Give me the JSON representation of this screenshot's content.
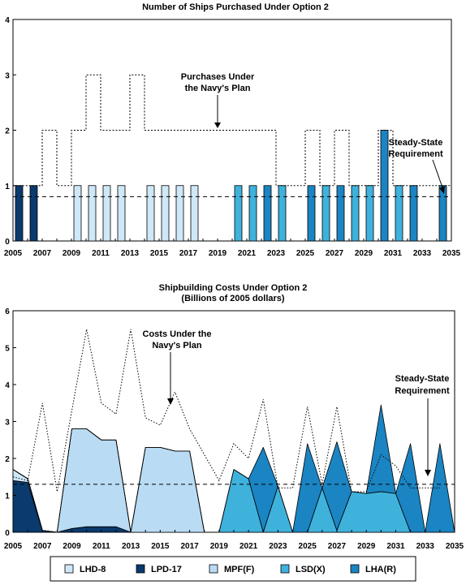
{
  "colors": {
    "LHD-8": "#cfe8f8",
    "LPD-17": "#0a3a6e",
    "MPF(F)": "#b9dcf4",
    "LSD(X)": "#3fb2dc",
    "LHA(R)": "#1b84c2",
    "outline": "#000000"
  },
  "chart_data": [
    {
      "type": "bar",
      "title": "Number of Ships Purchased Under Option 2",
      "xlim": [
        2005,
        2035
      ],
      "ylim": [
        0,
        4
      ],
      "yticks": [
        "0",
        "1",
        "2",
        "3",
        "4"
      ],
      "xticks": [
        "2005",
        "2007",
        "2009",
        "2011",
        "2013",
        "2015",
        "2017",
        "2019",
        "2021",
        "2023",
        "2025",
        "2027",
        "2029",
        "2031",
        "2033",
        "2035"
      ],
      "bars": [
        {
          "year": 2005,
          "ship": "LPD-17",
          "count": 1
        },
        {
          "year": 2006,
          "ship": "LPD-17",
          "count": 1
        },
        {
          "year": 2009,
          "ship": "LHD-8",
          "count": 1
        },
        {
          "year": 2010,
          "ship": "LHD-8",
          "count": 1
        },
        {
          "year": 2011,
          "ship": "LHD-8",
          "count": 1
        },
        {
          "year": 2012,
          "ship": "LHD-8",
          "count": 1
        },
        {
          "year": 2014,
          "ship": "LHD-8",
          "count": 1
        },
        {
          "year": 2015,
          "ship": "LHD-8",
          "count": 1
        },
        {
          "year": 2016,
          "ship": "LHD-8",
          "count": 1
        },
        {
          "year": 2017,
          "ship": "LHD-8",
          "count": 1
        },
        {
          "year": 2020,
          "ship": "LSD(X)",
          "count": 1
        },
        {
          "year": 2021,
          "ship": "LSD(X)",
          "count": 1
        },
        {
          "year": 2022,
          "ship": "LHA(R)",
          "count": 1
        },
        {
          "year": 2023,
          "ship": "LSD(X)",
          "count": 1
        },
        {
          "year": 2025,
          "ship": "LHA(R)",
          "count": 1
        },
        {
          "year": 2026,
          "ship": "LSD(X)",
          "count": 1
        },
        {
          "year": 2027,
          "ship": "LHA(R)",
          "count": 1
        },
        {
          "year": 2028,
          "ship": "LSD(X)",
          "count": 1
        },
        {
          "year": 2029,
          "ship": "LSD(X)",
          "count": 1
        },
        {
          "year": 2030,
          "ship": "LHA(R)",
          "count": 2
        },
        {
          "year": 2031,
          "ship": "LSD(X)",
          "count": 1
        },
        {
          "year": 2032,
          "ship": "LHA(R)",
          "count": 1
        },
        {
          "year": 2034,
          "ship": "LHA(R)",
          "count": 1
        }
      ],
      "navy_plan": {
        "years": [
          2005,
          2006,
          2007,
          2008,
          2009,
          2010,
          2011,
          2012,
          2013,
          2014,
          2015,
          2016,
          2017,
          2018,
          2019,
          2020,
          2021,
          2022,
          2023,
          2024,
          2025,
          2026,
          2027,
          2028,
          2029,
          2030,
          2031,
          2032,
          2033,
          2034
        ],
        "values": [
          1,
          1,
          2,
          1,
          2,
          3,
          2,
          2,
          3,
          2,
          2,
          2,
          2,
          2,
          2,
          2,
          2,
          2,
          1,
          1,
          2,
          1,
          2,
          1,
          1,
          2,
          1,
          1,
          1,
          1
        ]
      },
      "steady_state": 0.8,
      "annotations": {
        "plan_label": [
          "Purchases Under",
          "the Navy's Plan"
        ],
        "steady_label": [
          "Steady-State",
          "Requirement"
        ]
      }
    },
    {
      "type": "area",
      "title": [
        "Shipbuilding Costs Under Option 2",
        "(Billions of 2005 dollars)"
      ],
      "xlim": [
        2005,
        2035
      ],
      "ylim": [
        0,
        6
      ],
      "yticks": [
        "0",
        "1",
        "2",
        "3",
        "4",
        "5",
        "6"
      ],
      "xticks": [
        "2005",
        "2007",
        "2009",
        "2011",
        "2013",
        "2015",
        "2017",
        "2019",
        "2021",
        "2023",
        "2025",
        "2027",
        "2029",
        "2031",
        "2033",
        "2035"
      ],
      "x": [
        2005,
        2006,
        2007,
        2008,
        2009,
        2010,
        2011,
        2012,
        2013,
        2014,
        2015,
        2016,
        2017,
        2018,
        2019,
        2020,
        2021,
        2022,
        2023,
        2024,
        2025,
        2026,
        2027,
        2028,
        2029,
        2030,
        2031,
        2032,
        2033,
        2034,
        2035
      ],
      "series": [
        {
          "name": "LPD-17",
          "values": [
            1.4,
            1.35,
            0.05,
            0,
            0.1,
            0.15,
            0.15,
            0.15,
            0,
            0,
            0,
            0,
            0,
            0,
            0,
            0,
            0,
            0,
            0,
            0,
            0,
            0,
            0,
            0,
            0,
            0,
            0,
            0,
            0,
            0,
            0
          ]
        },
        {
          "name": "LHD-8",
          "values": [
            0.3,
            0.1,
            0,
            0,
            0,
            0,
            0,
            0,
            0,
            0,
            0,
            0,
            0,
            0,
            0,
            0,
            0,
            0,
            0,
            0,
            0,
            0,
            0,
            0,
            0,
            0,
            0,
            0,
            0,
            0,
            0
          ]
        },
        {
          "name": "MPF(F)",
          "values": [
            0,
            0,
            0,
            0,
            2.7,
            2.65,
            2.35,
            2.35,
            0,
            2.3,
            2.3,
            2.2,
            2.2,
            0,
            0,
            0,
            0,
            0,
            0,
            0,
            0,
            0,
            0,
            0,
            0,
            0,
            0,
            0,
            0,
            0,
            0
          ]
        },
        {
          "name": "LSD(X)",
          "values": [
            0,
            0,
            0,
            0,
            0,
            0,
            0,
            0,
            0,
            0,
            0,
            0,
            0,
            0,
            0,
            1.7,
            1.45,
            0,
            1.25,
            0,
            0,
            1.2,
            0.05,
            1.1,
            1.05,
            1.1,
            1.05,
            0,
            0,
            0,
            0
          ]
        },
        {
          "name": "LHA(R)",
          "values": [
            0,
            0,
            0,
            0,
            0,
            0,
            0,
            0,
            0,
            0,
            0,
            0,
            0,
            0,
            0,
            0,
            0,
            2.3,
            0,
            0,
            2.4,
            0,
            2.4,
            0,
            0,
            2.35,
            0,
            2.4,
            0,
            2.4,
            0
          ]
        }
      ],
      "navy_plan": {
        "x": [
          2005,
          2006,
          2007,
          2008,
          2009,
          2010,
          2011,
          2012,
          2013,
          2014,
          2015,
          2016,
          2017,
          2018,
          2019,
          2020,
          2021,
          2022,
          2023,
          2024,
          2025,
          2026,
          2027,
          2028,
          2029,
          2030,
          2031,
          2032,
          2033,
          2034
        ],
        "values": [
          1.5,
          1.4,
          3.5,
          1.1,
          3.3,
          5.5,
          3.5,
          3.2,
          5.5,
          3.1,
          2.9,
          3.8,
          2.8,
          2.1,
          1.4,
          2.4,
          2.0,
          3.6,
          1.2,
          1.2,
          3.4,
          1.3,
          3.4,
          1.1,
          1.1,
          2.1,
          1.8,
          1.2,
          1.2,
          1.2
        ]
      },
      "steady_state": 1.3,
      "annotations": {
        "plan_label": [
          "Costs Under the",
          "Navy's Plan"
        ],
        "steady_label": [
          "Steady-State",
          "Requirement"
        ]
      }
    }
  ],
  "legend": [
    "LHD-8",
    "LPD-17",
    "MPF(F)",
    "LSD(X)",
    "LHA(R)"
  ]
}
